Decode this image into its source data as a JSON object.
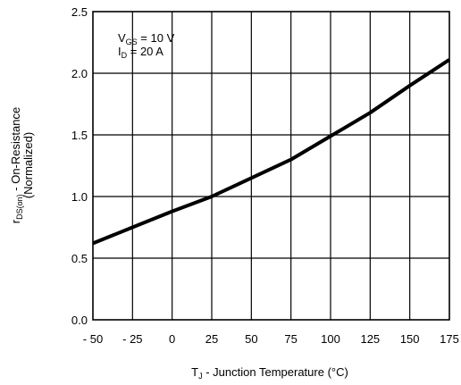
{
  "chart_data": {
    "type": "line",
    "title": "",
    "xlabel": {
      "main": "T",
      "sub": "J",
      "rest": " -  Junction Temperature (°C)"
    },
    "ylabel": {
      "line1_main": "r",
      "line1_sub": "DS(on)",
      "line1_rest": " - On-Resistance",
      "line2": "(Normalized)"
    },
    "xlim": [
      -50,
      175
    ],
    "ylim": [
      0.0,
      2.5
    ],
    "xticks": [
      -50,
      -25,
      0,
      25,
      50,
      75,
      100,
      125,
      150,
      175
    ],
    "xtick_labels": [
      "- 50",
      "- 25",
      "0",
      "25",
      "50",
      "75",
      "100",
      "125",
      "150",
      "175"
    ],
    "yticks": [
      0.0,
      0.5,
      1.0,
      1.5,
      2.0,
      2.5
    ],
    "ytick_labels": [
      "0.0",
      "0.5",
      "1.0",
      "1.5",
      "2.0",
      "2.5"
    ],
    "grid": true,
    "annotation": [
      {
        "main": "V",
        "sub": "GS",
        "rest": " = 10 V"
      },
      {
        "main": "I",
        "sub": "D",
        "rest": " = 20 A"
      }
    ],
    "series": [
      {
        "x": [
          -50,
          -25,
          0,
          25,
          50,
          75,
          100,
          125,
          150,
          175
        ],
        "y": [
          0.62,
          0.75,
          0.88,
          1.0,
          1.15,
          1.3,
          1.49,
          1.68,
          1.9,
          2.11
        ]
      }
    ]
  }
}
